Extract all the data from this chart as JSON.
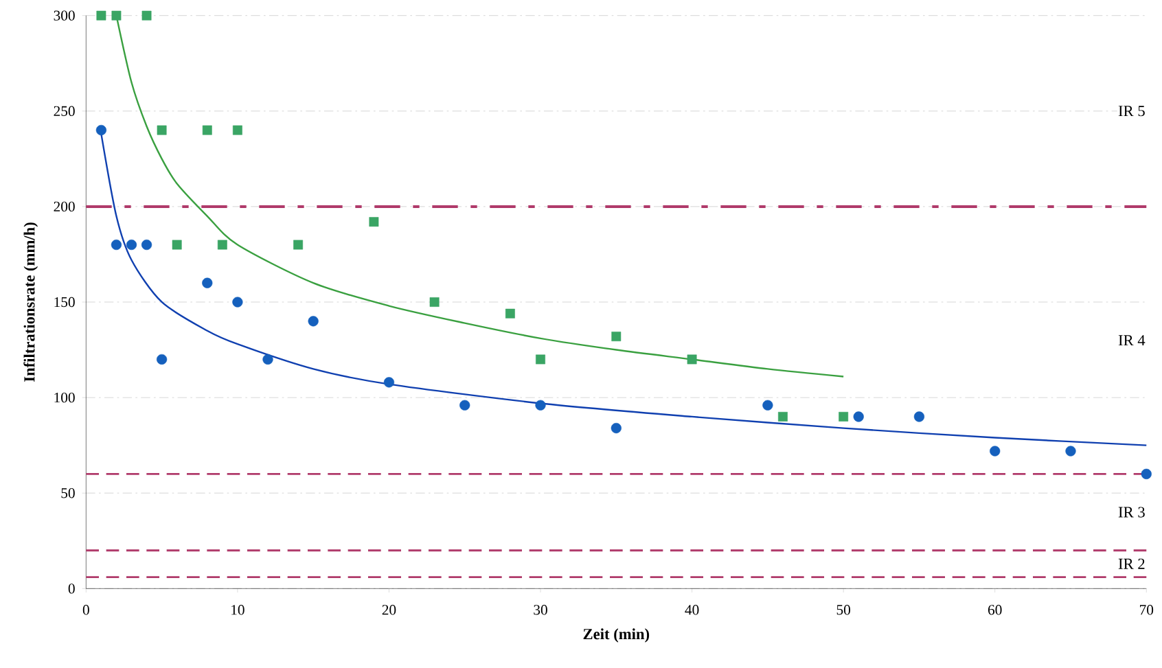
{
  "chart_data": {
    "type": "scatter",
    "xlabel": "Zeit (min)",
    "ylabel": "Infiltrationsrate (mm/h)",
    "xlim": [
      0,
      70
    ],
    "ylim": [
      0,
      300
    ],
    "xticks": [
      0,
      10,
      20,
      30,
      40,
      50,
      60,
      70
    ],
    "yticks": [
      0,
      50,
      100,
      150,
      200,
      250,
      300
    ],
    "grid": "y",
    "series": [
      {
        "marker": "circle",
        "color": "#1560bd",
        "x": [
          1,
          2,
          3,
          4,
          5,
          8,
          10,
          12,
          15,
          20,
          25,
          30,
          35,
          45,
          51,
          55,
          60,
          65,
          70
        ],
        "values": [
          240,
          180,
          180,
          180,
          120,
          160,
          150,
          120,
          140,
          108,
          96,
          96,
          84,
          96,
          90,
          90,
          72,
          72,
          60
        ]
      },
      {
        "marker": "square",
        "color": "#3aa564",
        "x": [
          1,
          2,
          4,
          5,
          6,
          8,
          9,
          10,
          14,
          19,
          23,
          28,
          30,
          35,
          40,
          46,
          50
        ],
        "values": [
          300,
          300,
          300,
          240,
          180,
          240,
          180,
          240,
          180,
          192,
          150,
          144,
          120,
          132,
          120,
          90,
          90
        ]
      },
      {
        "type": "line",
        "marker": "none",
        "color": "#1040b0",
        "x": [
          1,
          2,
          3,
          5,
          8,
          10,
          15,
          20,
          30,
          40,
          50,
          60,
          70
        ],
        "values": [
          238,
          195,
          172,
          150,
          135,
          128,
          115,
          107,
          97,
          90,
          84,
          79,
          75
        ]
      },
      {
        "type": "line",
        "marker": "none",
        "color": "#3aa040",
        "x": [
          2,
          3,
          4,
          5,
          6,
          8,
          10,
          15,
          20,
          25,
          30,
          35,
          40,
          45,
          50
        ],
        "values": [
          300,
          265,
          242,
          225,
          212,
          195,
          180,
          160,
          148,
          139,
          131,
          125,
          120,
          115,
          111
        ]
      }
    ],
    "ref_lines": [
      {
        "axis": "y",
        "value": 200,
        "color": "#b03a6a",
        "line_style": "dashdot"
      },
      {
        "axis": "y",
        "value": 60,
        "color": "#b03a6a",
        "line_style": "dashed"
      },
      {
        "axis": "y",
        "value": 20,
        "color": "#b03a6a",
        "line_style": "dashed"
      },
      {
        "axis": "y",
        "value": 6,
        "color": "#b03a6a",
        "line_style": "dashed"
      }
    ],
    "annotations": [
      "IR 5",
      "IR 4",
      "IR 3",
      "IR 2"
    ]
  }
}
